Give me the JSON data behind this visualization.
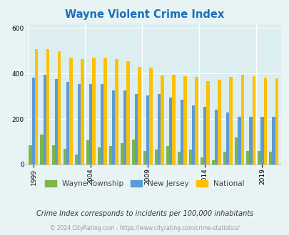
{
  "title": "Wayne Violent Crime Index",
  "title_color": "#1a6fba",
  "years": [
    1999,
    2000,
    2001,
    2002,
    2003,
    2004,
    2005,
    2006,
    2007,
    2008,
    2009,
    2010,
    2011,
    2012,
    2013,
    2014,
    2015,
    2016,
    2017,
    2018,
    2019,
    2020
  ],
  "wayne_vals": [
    85,
    130,
    85,
    70,
    45,
    105,
    75,
    80,
    95,
    110,
    60,
    65,
    80,
    55,
    65,
    30,
    20,
    55,
    120,
    60,
    60,
    55
  ],
  "nj_vals": [
    383,
    393,
    375,
    363,
    355,
    355,
    353,
    327,
    327,
    310,
    305,
    310,
    295,
    285,
    260,
    253,
    242,
    230,
    210,
    210,
    210,
    210
  ],
  "national_vals": [
    507,
    507,
    498,
    470,
    462,
    470,
    470,
    465,
    455,
    430,
    425,
    390,
    393,
    387,
    385,
    365,
    373,
    386,
    395,
    388,
    383,
    380
  ],
  "wayne_color": "#7ab648",
  "nj_color": "#5b9bd5",
  "national_color": "#ffc000",
  "bg_color": "#e8f3f4",
  "plot_bg": "#ddeef0",
  "ylim": [
    0,
    620
  ],
  "yticks": [
    0,
    200,
    400,
    600
  ],
  "subtitle": "Crime Index corresponds to incidents per 100,000 inhabitants",
  "footer": "© 2024 CityRating.com - https://www.cityrating.com/crime-statistics/",
  "legend_labels": [
    "Wayne Township",
    "New Jersey",
    "National"
  ],
  "bar_width": 0.27,
  "xtick_years": [
    1999,
    2004,
    2009,
    2014,
    2019
  ]
}
